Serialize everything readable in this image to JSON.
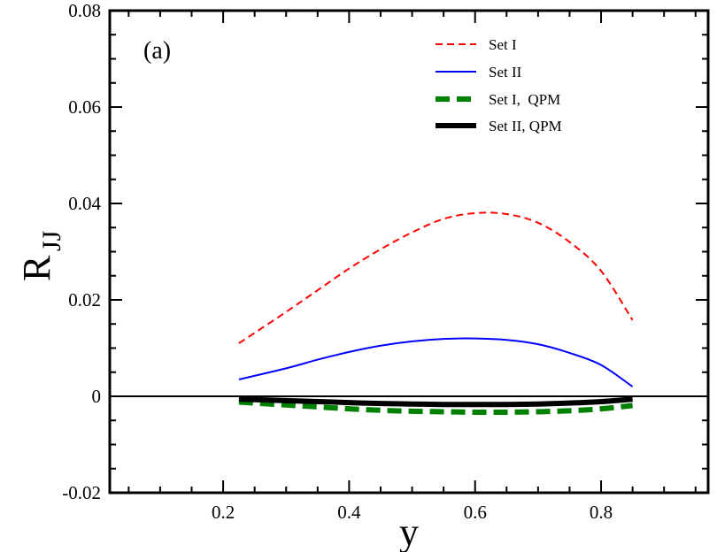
{
  "chart_data": {
    "type": "line",
    "title": "",
    "panel_label": "(a)",
    "xlabel": "y",
    "ylabel_main": "R",
    "ylabel_sub": "JJ",
    "xlim": [
      0.02,
      0.97
    ],
    "ylim": [
      -0.02,
      0.08
    ],
    "xticks": [
      0.2,
      0.4,
      0.6,
      0.8
    ],
    "xtick_labels": [
      "0.2",
      "0.4",
      "0.6",
      "0.8"
    ],
    "yticks": [
      -0.02,
      0,
      0.02,
      0.04,
      0.06,
      0.08
    ],
    "ytick_labels": [
      "-0.02",
      "0",
      "0.02",
      "0.04",
      "0.06",
      "0.08"
    ],
    "legend_position": "top-right",
    "zero_line": true,
    "series": [
      {
        "name": "Set I",
        "color": "#ff0000",
        "style": "dashed-thin",
        "x": [
          0.225,
          0.3,
          0.35,
          0.4,
          0.45,
          0.5,
          0.55,
          0.6,
          0.65,
          0.7,
          0.75,
          0.8,
          0.85
        ],
        "y": [
          0.011,
          0.0175,
          0.022,
          0.0265,
          0.0305,
          0.034,
          0.0368,
          0.038,
          0.0378,
          0.036,
          0.032,
          0.026,
          0.0158
        ]
      },
      {
        "name": "Set II",
        "color": "#0000ff",
        "style": "solid-thin",
        "x": [
          0.225,
          0.3,
          0.35,
          0.4,
          0.45,
          0.5,
          0.55,
          0.6,
          0.65,
          0.7,
          0.75,
          0.8,
          0.85
        ],
        "y": [
          0.0035,
          0.0058,
          0.0076,
          0.0092,
          0.0105,
          0.0114,
          0.0119,
          0.012,
          0.0117,
          0.0108,
          0.009,
          0.0065,
          0.002
        ]
      },
      {
        "name": "Set I,  QPM",
        "color": "#008000",
        "style": "dashed-thick",
        "x": [
          0.225,
          0.3,
          0.35,
          0.4,
          0.45,
          0.5,
          0.55,
          0.6,
          0.65,
          0.7,
          0.75,
          0.8,
          0.85
        ],
        "y": [
          -0.0012,
          -0.0018,
          -0.0022,
          -0.0026,
          -0.0029,
          -0.0031,
          -0.0032,
          -0.0033,
          -0.0033,
          -0.0032,
          -0.003,
          -0.0026,
          -0.0019
        ]
      },
      {
        "name": "Set II, QPM",
        "color": "#000000",
        "style": "solid-thick",
        "x": [
          0.225,
          0.3,
          0.35,
          0.4,
          0.45,
          0.5,
          0.55,
          0.6,
          0.65,
          0.7,
          0.75,
          0.8,
          0.85
        ],
        "y": [
          -0.0006,
          -0.0009,
          -0.0011,
          -0.0013,
          -0.0015,
          -0.0016,
          -0.0017,
          -0.0017,
          -0.0017,
          -0.0016,
          -0.0014,
          -0.0011,
          -0.0006
        ]
      }
    ]
  }
}
